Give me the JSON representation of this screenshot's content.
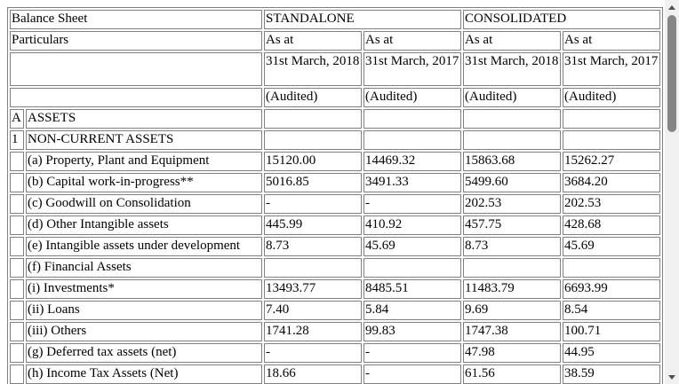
{
  "header": {
    "title": "Balance Sheet",
    "group_standalone": "STANDALONE",
    "group_consolidated": "CONSOLIDATED",
    "particulars": "Particulars",
    "as_at": [
      "As at",
      "As at",
      "As at",
      "As at"
    ],
    "dates": [
      "31st March, 2018",
      "31st March, 2017",
      "31st March, 2018",
      "31st March, 2017"
    ],
    "audited": [
      "(Audited)",
      "(Audited)",
      "(Audited)",
      "(Audited)"
    ]
  },
  "rows": [
    {
      "idx": "A",
      "label": "ASSETS",
      "v": [
        "",
        "",
        "",
        ""
      ]
    },
    {
      "idx": "1",
      "label": "NON-CURRENT ASSETS",
      "v": [
        "",
        "",
        "",
        ""
      ]
    },
    {
      "idx": "",
      "label": "(a) Property, Plant and Equipment",
      "v": [
        "15120.00",
        "14469.32",
        "15863.68",
        "15262.27"
      ]
    },
    {
      "idx": "",
      "label": "(b) Capital work-in-progress**",
      "v": [
        "5016.85",
        "3491.33",
        "5499.60",
        "3684.20"
      ]
    },
    {
      "idx": "",
      "label": "(c) Goodwill on Consolidation",
      "v": [
        "-",
        "-",
        "202.53",
        "202.53"
      ]
    },
    {
      "idx": "",
      "label": "(d) Other Intangible assets",
      "v": [
        "445.99",
        "410.92",
        "457.75",
        "428.68"
      ]
    },
    {
      "idx": "",
      "label": "(e) Intangible assets under development",
      "v": [
        "8.73",
        "45.69",
        "8.73",
        "45.69"
      ]
    },
    {
      "idx": "",
      "label": "(f) Financial Assets",
      "v": [
        "",
        "",
        "",
        ""
      ]
    },
    {
      "idx": "",
      "label": "(i) Investments*",
      "v": [
        "13493.77",
        "8485.51",
        "11483.79",
        "6693.99"
      ]
    },
    {
      "idx": "",
      "label": "(ii) Loans",
      "v": [
        "7.40",
        "5.84",
        "9.69",
        "8.54"
      ]
    },
    {
      "idx": "",
      "label": "(iii) Others",
      "v": [
        "1741.28",
        "99.83",
        "1747.38",
        "100.71"
      ]
    },
    {
      "idx": "",
      "label": "(g) Deferred tax assets (net)",
      "v": [
        "-",
        "-",
        "47.98",
        "44.95"
      ]
    },
    {
      "idx": "",
      "label": "(h) Income Tax Assets (Net)",
      "v": [
        "18.66",
        "-",
        "61.56",
        "38.59"
      ]
    }
  ]
}
